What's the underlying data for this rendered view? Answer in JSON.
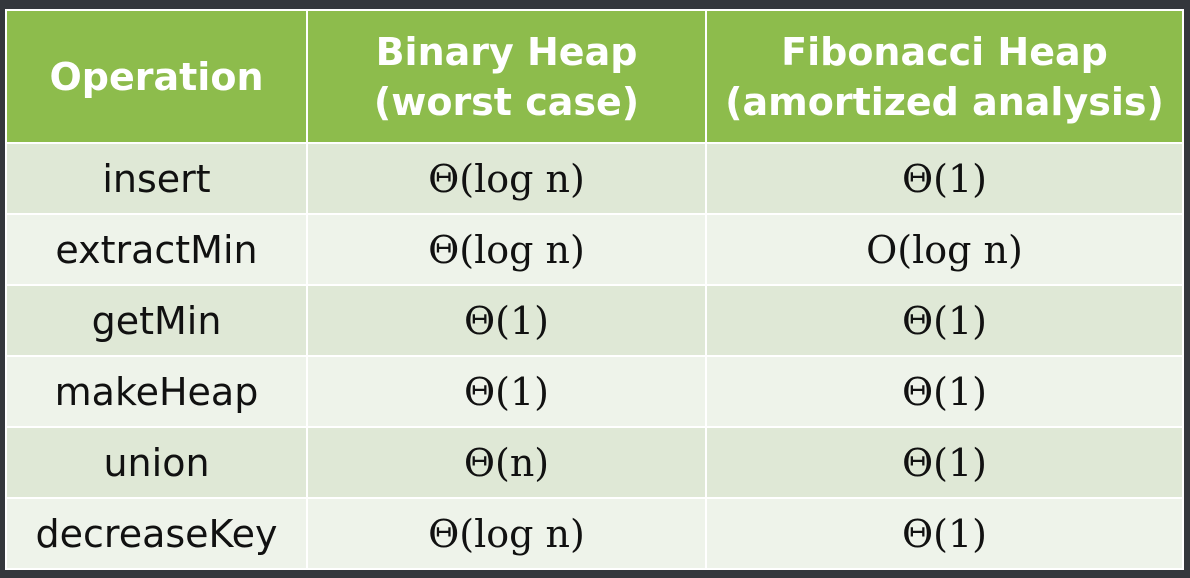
{
  "table": {
    "headers": [
      {
        "line1": "Operation",
        "line2": ""
      },
      {
        "line1": "Binary Heap",
        "line2": "(worst case)"
      },
      {
        "line1": "Fibonacci Heap",
        "line2": "(amortized analysis)"
      }
    ],
    "rows": [
      {
        "operation": "insert",
        "binary": "Θ(log n)",
        "fibonacci": "Θ(1)"
      },
      {
        "operation": "extractMin",
        "binary": "Θ(log n)",
        "fibonacci": "O(log n)"
      },
      {
        "operation": "getMin",
        "binary": "Θ(1)",
        "fibonacci": "Θ(1)"
      },
      {
        "operation": "makeHeap",
        "binary": "Θ(1)",
        "fibonacci": "Θ(1)"
      },
      {
        "operation": "union",
        "binary": "Θ(n)",
        "fibonacci": "Θ(1)"
      },
      {
        "operation": "decreaseKey",
        "binary": "Θ(log n)",
        "fibonacci": "Θ(1)"
      }
    ]
  },
  "colors": {
    "header_bg": "#8dbc4c",
    "row_odd_bg": "#dfe8d6",
    "row_even_bg": "#eef3ea",
    "border": "#ffffff"
  }
}
